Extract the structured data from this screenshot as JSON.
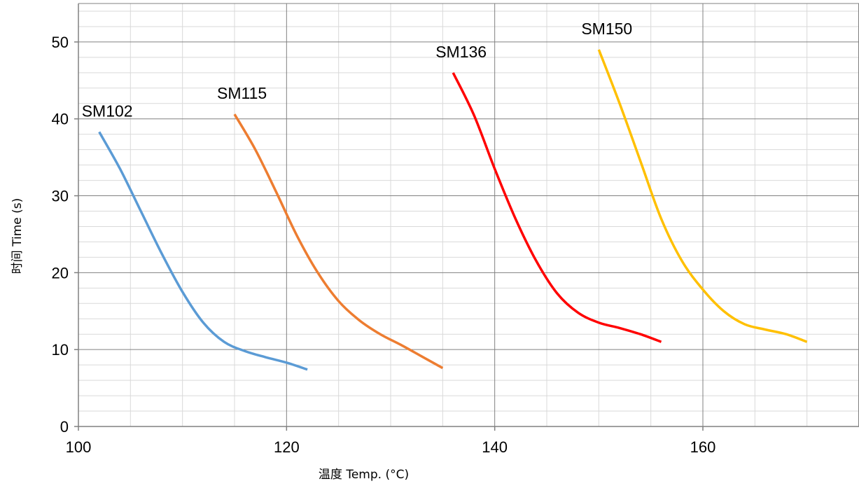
{
  "chart_data": {
    "type": "line",
    "xlabel": "温度 Temp. (°C)",
    "ylabel": "时间 Time (s)",
    "xlim": [
      100,
      175
    ],
    "ylim": [
      0,
      55
    ],
    "xticks": [
      100,
      120,
      140,
      160
    ],
    "yticks": [
      0,
      10,
      20,
      30,
      40,
      50
    ],
    "grid": "major and minor",
    "legend": "none (series labelled at curve start)",
    "series": [
      {
        "name": "SM102",
        "color": "#5b9bd5",
        "x": [
          102,
          104,
          106,
          108,
          110,
          112,
          114,
          116,
          118,
          120,
          122
        ],
        "y": [
          38.3,
          33.5,
          28.0,
          22.5,
          17.5,
          13.5,
          11.0,
          9.8,
          9.0,
          8.3,
          7.4
        ]
      },
      {
        "name": "SM115",
        "color": "#ed7d31",
        "x": [
          115,
          117,
          119,
          121,
          123,
          125,
          127,
          129,
          131,
          133,
          135
        ],
        "y": [
          40.6,
          36.0,
          30.5,
          24.8,
          20.0,
          16.3,
          13.8,
          12.0,
          10.6,
          9.1,
          7.6
        ]
      },
      {
        "name": "SM136",
        "color": "#ff0000",
        "x": [
          136,
          138,
          140,
          142,
          144,
          146,
          148,
          150,
          152,
          154,
          156
        ],
        "y": [
          46.0,
          40.5,
          33.5,
          27.0,
          21.5,
          17.3,
          14.8,
          13.5,
          12.8,
          12.0,
          11.0
        ]
      },
      {
        "name": "SM150",
        "color": "#ffc000",
        "x": [
          150,
          152,
          154,
          156,
          158,
          160,
          162,
          164,
          166,
          168,
          170
        ],
        "y": [
          49.0,
          42.0,
          34.5,
          27.0,
          21.5,
          17.8,
          15.0,
          13.3,
          12.6,
          12.0,
          11.0
        ]
      }
    ]
  }
}
